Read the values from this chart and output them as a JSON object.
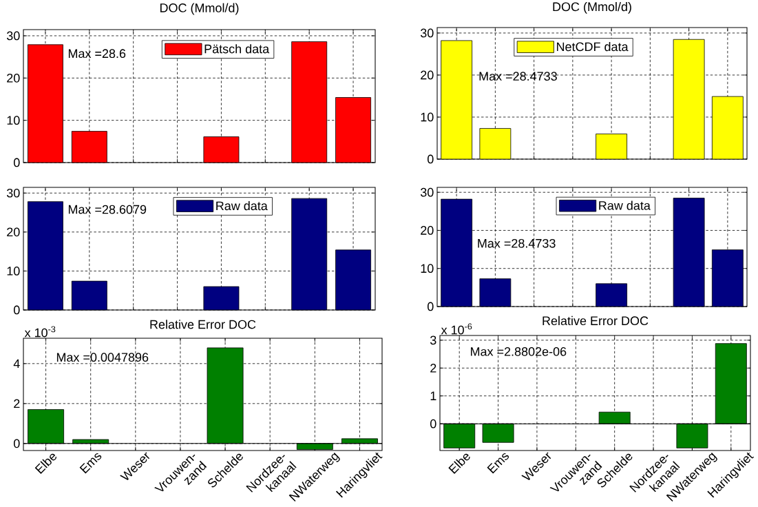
{
  "chart_data": [
    {
      "type": "bar",
      "title": "DOC (Mmol/d)",
      "categories": [
        null,
        null,
        null,
        null,
        null,
        null,
        null,
        null
      ],
      "series": [
        {
          "name": "Pätsch data",
          "color": "#ff0000",
          "values": [
            27.9,
            7.4,
            null,
            null,
            6.1,
            null,
            28.6,
            15.4
          ]
        }
      ],
      "ylim": [
        0,
        31.46
      ],
      "yticks": [
        0,
        10,
        20,
        30
      ],
      "grid": true,
      "legend": "top",
      "annotations": [
        "Max =28.6"
      ]
    },
    {
      "type": "bar",
      "title": "DOC (Mmol/d)",
      "categories": [
        null,
        null,
        null,
        null,
        null,
        null,
        null,
        null
      ],
      "series": [
        {
          "name": "NetCDF data",
          "color": "#ffff00",
          "values": [
            28.2,
            7.3,
            null,
            null,
            6.0,
            null,
            28.4733,
            14.9
          ]
        }
      ],
      "ylim": [
        0,
        31.3
      ],
      "yticks": [
        0,
        10,
        20,
        30
      ],
      "grid": true,
      "legend": "top",
      "annotations": [
        "Max =28.4733"
      ]
    },
    {
      "type": "bar",
      "categories": [
        null,
        null,
        null,
        null,
        null,
        null,
        null,
        null
      ],
      "series": [
        {
          "name": "Raw data",
          "color": "#000080",
          "values": [
            27.8,
            7.4,
            null,
            null,
            6.0,
            null,
            28.6079,
            15.4
          ]
        }
      ],
      "ylim": [
        0,
        31.46
      ],
      "yticks": [
        0,
        10,
        20,
        30
      ],
      "grid": true,
      "legend": "top",
      "annotations": [
        "Max =28.6079"
      ]
    },
    {
      "type": "bar",
      "categories": [
        null,
        null,
        null,
        null,
        null,
        null,
        null,
        null
      ],
      "series": [
        {
          "name": "Raw data",
          "color": "#000080",
          "values": [
            28.2,
            7.3,
            null,
            null,
            6.0,
            null,
            28.4733,
            14.9
          ]
        }
      ],
      "ylim": [
        0,
        31.3
      ],
      "yticks": [
        0,
        10,
        20,
        30
      ],
      "grid": true,
      "legend": "top",
      "annotations": [
        "Max =28.4733"
      ]
    },
    {
      "type": "bar",
      "title": "Relative Error DOC",
      "categories": [
        "Elbe",
        "Ems",
        "Weser",
        "Vrouwen- zand",
        "Schelde",
        "Nordzee- kanaal",
        "NWaterweg",
        "Haringvliet"
      ],
      "series": [
        {
          "color": "#008000",
          "values": [
            1.7,
            0.2,
            null,
            null,
            4.7896,
            null,
            -0.3,
            0.24
          ]
        }
      ],
      "ylim": [
        -0.35,
        5.27
      ],
      "yticks": [
        0,
        2,
        4
      ],
      "grid": true,
      "annotations": [
        "Max =0.0047896",
        "x 10$^{-3}$"
      ]
    },
    {
      "type": "bar",
      "title": "Relative Error DOC",
      "categories": [
        "Elbe",
        "Ems",
        "Weser",
        "Vrouwen- zand",
        "Schelde",
        "Nordzee- kanaal",
        "NWaterweg",
        "Haringvliet"
      ],
      "series": [
        {
          "color": "#008000",
          "values": [
            -0.87,
            -0.67,
            null,
            null,
            0.42,
            null,
            -0.87,
            2.8802
          ]
        }
      ],
      "ylim": [
        -0.96,
        3.17
      ],
      "yticks": [
        0,
        1,
        2,
        3
      ],
      "grid": true,
      "annotations": [
        "Max =2.8802e-06",
        "x 10$^{-6}$"
      ]
    }
  ]
}
